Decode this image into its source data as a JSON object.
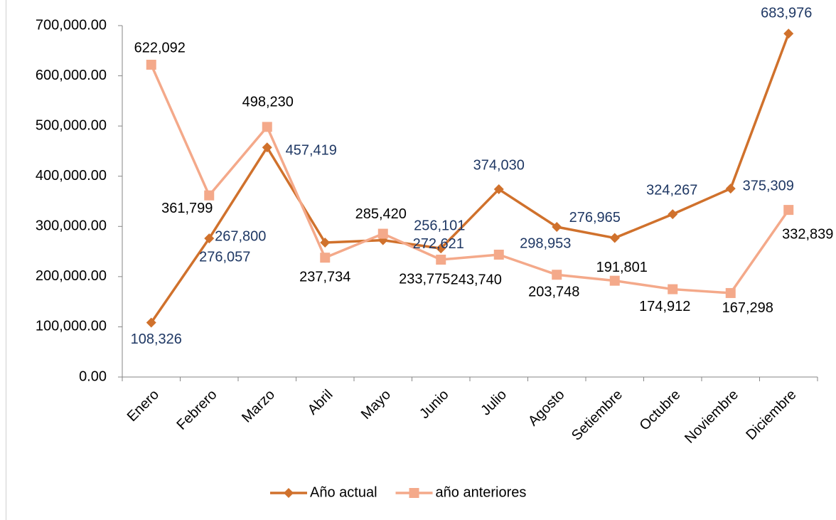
{
  "chart_data": {
    "type": "line",
    "categories": [
      "Enero",
      "Febrero",
      "Marzo",
      "Abril",
      "Mayo",
      "Junio",
      "Julio",
      "Agosto",
      "Setiembre",
      "Octubre",
      "Noviembre",
      "Diciembre"
    ],
    "series": [
      {
        "name": "Año actual",
        "color": "#d0712c",
        "marker": "diamond",
        "label_color": "#1f3864",
        "values": [
          108326,
          276057,
          457419,
          267800,
          272621,
          256101,
          374030,
          298953,
          276965,
          324267,
          375309,
          683976
        ],
        "value_labels": [
          "108,326",
          "276,057",
          "457,419",
          "267,800",
          "272,621",
          "256,101",
          "374,030",
          "298,953",
          "276,965",
          "324,267",
          "375,309",
          "683,976"
        ]
      },
      {
        "name": "año anteriores",
        "color": "#f4a98a",
        "marker": "square",
        "label_color": "#000000",
        "values": [
          622092,
          361799,
          498230,
          237734,
          285420,
          233775,
          243740,
          203748,
          191801,
          174912,
          167298,
          332839
        ],
        "value_labels": [
          "622,092",
          "361,799",
          "498,230",
          "237,734",
          "285,420",
          "233,775",
          "243,740",
          "203,748",
          "191,801",
          "174,912",
          "167,298",
          "332,839"
        ]
      }
    ],
    "ylim": [
      0,
      700000
    ],
    "yticks": [
      {
        "value": 0,
        "label": "0.00"
      },
      {
        "value": 100000,
        "label": "100,000.00"
      },
      {
        "value": 200000,
        "label": "200,000.00"
      },
      {
        "value": 300000,
        "label": "300,000.00"
      },
      {
        "value": 400000,
        "label": "400,000.00"
      },
      {
        "value": 500000,
        "label": "500,000.00"
      },
      {
        "value": 600000,
        "label": "600,000.00"
      },
      {
        "value": 700000,
        "label": "700,000.00"
      }
    ],
    "grid": false,
    "legend": "bottom"
  }
}
